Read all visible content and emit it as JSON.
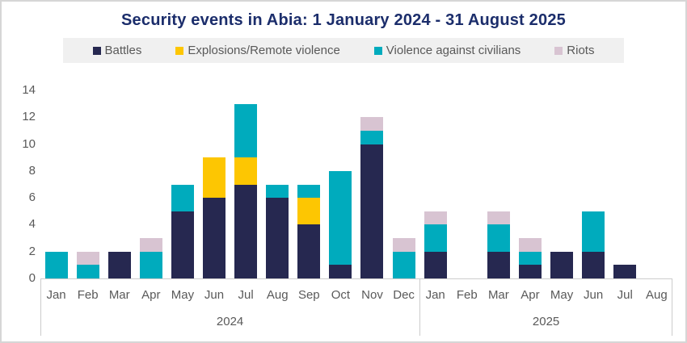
{
  "title": "Security events in Abia: 1 January 2024 - 31 August 2025",
  "colors": {
    "title_text": "#1b2d6b",
    "axis_text": "#595959",
    "legend_background": "#f0f0f0",
    "axis_line": "#cccccc",
    "battles": "#262850",
    "explosions": "#fdc602",
    "violence_civilians": "#00abbd",
    "riots": "#d8c4d2"
  },
  "legend": [
    {
      "label": "Battles",
      "color": "#262850"
    },
    {
      "label": "Explosions/Remote violence",
      "color": "#fdc602"
    },
    {
      "label": "Violence against civilians",
      "color": "#00abbd"
    },
    {
      "label": "Riots",
      "color": "#d8c4d2"
    }
  ],
  "chart_data": {
    "type": "bar",
    "stacked": true,
    "title": "Security events in Abia: 1 January 2024 - 31 August 2025",
    "xlabel": "",
    "ylabel": "",
    "ylim": [
      0,
      14
    ],
    "yticks": [
      0,
      2,
      4,
      6,
      8,
      10,
      12,
      14
    ],
    "grid": false,
    "legend_position": "top",
    "categories": [
      "Jan",
      "Feb",
      "Mar",
      "Apr",
      "May",
      "Jun",
      "Jul",
      "Aug",
      "Sep",
      "Oct",
      "Nov",
      "Dec",
      "Jan",
      "Feb",
      "Mar",
      "Apr",
      "May",
      "Jun",
      "Jul",
      "Aug"
    ],
    "groups": [
      {
        "label": "2024",
        "span": 12
      },
      {
        "label": "2025",
        "span": 8
      }
    ],
    "series": [
      {
        "name": "Battles",
        "color": "#262850",
        "values": [
          0,
          0,
          2,
          0,
          5,
          6,
          7,
          6,
          4,
          1,
          10,
          0,
          2,
          0,
          2,
          1,
          2,
          2,
          1,
          0
        ]
      },
      {
        "name": "Explosions/Remote violence",
        "color": "#fdc602",
        "values": [
          0,
          0,
          0,
          0,
          0,
          3,
          2,
          0,
          2,
          0,
          0,
          0,
          0,
          0,
          0,
          0,
          0,
          0,
          0,
          0
        ]
      },
      {
        "name": "Violence against civilians",
        "color": "#00abbd",
        "values": [
          2,
          1,
          0,
          2,
          2,
          0,
          4,
          1,
          1,
          7,
          1,
          2,
          2,
          0,
          2,
          1,
          0,
          3,
          0,
          0
        ]
      },
      {
        "name": "Riots",
        "color": "#d8c4d2",
        "values": [
          0,
          1,
          0,
          1,
          0,
          0,
          0,
          0,
          0,
          0,
          1,
          1,
          1,
          0,
          1,
          1,
          0,
          0,
          0,
          0
        ]
      }
    ]
  }
}
